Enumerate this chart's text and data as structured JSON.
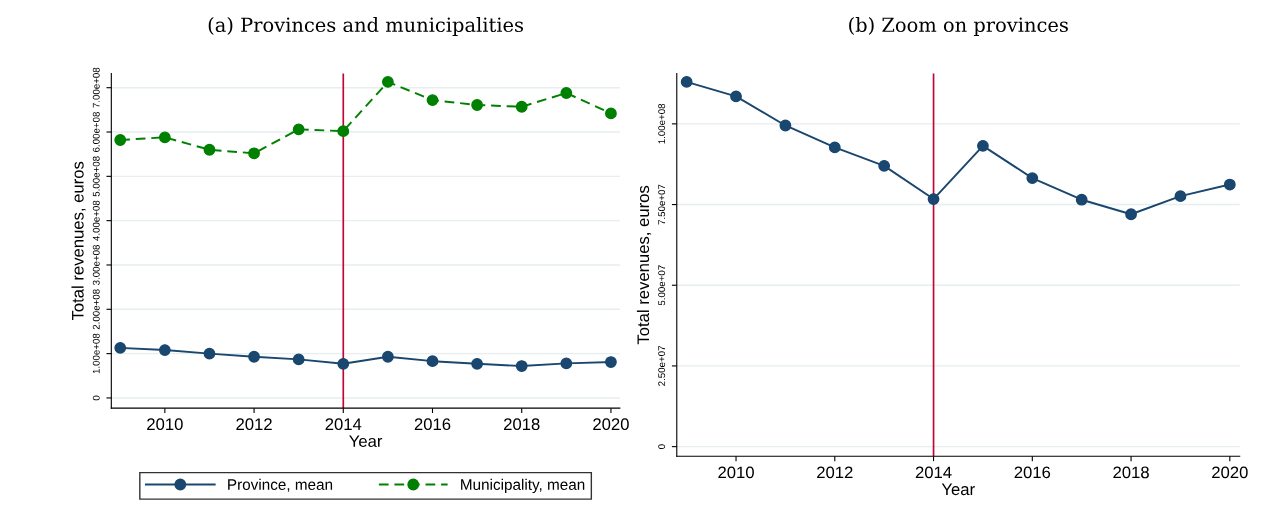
{
  "chart_data": [
    {
      "type": "line",
      "title": "(a) Provinces and municipalities",
      "xlabel": "Year",
      "ylabel": "Total revenues, euros",
      "x": [
        2009,
        2010,
        2011,
        2012,
        2013,
        2014,
        2015,
        2016,
        2017,
        2018,
        2019,
        2020
      ],
      "series": [
        {
          "name": "Province, mean",
          "color": "#1a476f",
          "line_style": "solid",
          "values": [
            113000000,
            108000000,
            100000000,
            93000000,
            87000000,
            77000000,
            93000000,
            83000000,
            77000000,
            72000000,
            78000000,
            81000000
          ]
        },
        {
          "name": "Municipality, mean",
          "color": "#008000",
          "line_style": "dashed",
          "values": [
            582000000,
            588000000,
            560000000,
            552000000,
            606000000,
            602000000,
            713000000,
            672000000,
            661000000,
            657000000,
            688000000,
            642000000
          ]
        }
      ],
      "marker": "circle",
      "xlim": [
        2008.8,
        2020.2
      ],
      "xticks": [
        2010,
        2012,
        2014,
        2016,
        2018,
        2020
      ],
      "ylim": [
        -23000000,
        732000000
      ],
      "yticks": [
        0,
        {
          "value": 100000000,
          "label": "1.00e+08"
        },
        {
          "value": 200000000,
          "label": "2.00e+08"
        },
        {
          "value": 300000000,
          "label": "3.00e+08"
        },
        {
          "value": 400000000,
          "label": "4.00e+08"
        },
        {
          "value": 500000000,
          "label": "5.00e+08"
        },
        {
          "value": 600000000,
          "label": "6.00e+08"
        },
        {
          "value": 700000000,
          "label": "7.00e+08"
        }
      ],
      "ref_lines": [
        {
          "axis": "x",
          "value": 2014,
          "color": "#c10534"
        }
      ],
      "grid": "y",
      "legend": "bottom"
    },
    {
      "type": "line",
      "title": "(b) Zoom on provinces",
      "xlabel": "Year",
      "ylabel": "Total revenues, euros",
      "x": [
        2009,
        2010,
        2011,
        2012,
        2013,
        2014,
        2015,
        2016,
        2017,
        2018,
        2019,
        2020
      ],
      "series": [
        {
          "color": "#1a476f",
          "line_style": "solid",
          "values": [
            113000000,
            108500000,
            99500000,
            92700000,
            87000000,
            76700000,
            93200000,
            83200000,
            76500000,
            72000000,
            77600000,
            81200000
          ]
        }
      ],
      "marker": "circle",
      "xlim": [
        2008.8,
        2020.2
      ],
      "xticks": [
        2010,
        2012,
        2014,
        2016,
        2018,
        2020
      ],
      "ylim": [
        -3000000,
        115600000
      ],
      "yticks": [
        0,
        {
          "value": 25000000,
          "label": "2.50e+07"
        },
        {
          "value": 50000000,
          "label": "5.00e+07"
        },
        {
          "value": 75000000,
          "label": "7.50e+07"
        },
        {
          "value": 100000000,
          "label": "1.00e+08"
        }
      ],
      "ref_lines": [
        {
          "axis": "x",
          "value": 2014,
          "color": "#c10534"
        }
      ],
      "grid": "y"
    }
  ]
}
